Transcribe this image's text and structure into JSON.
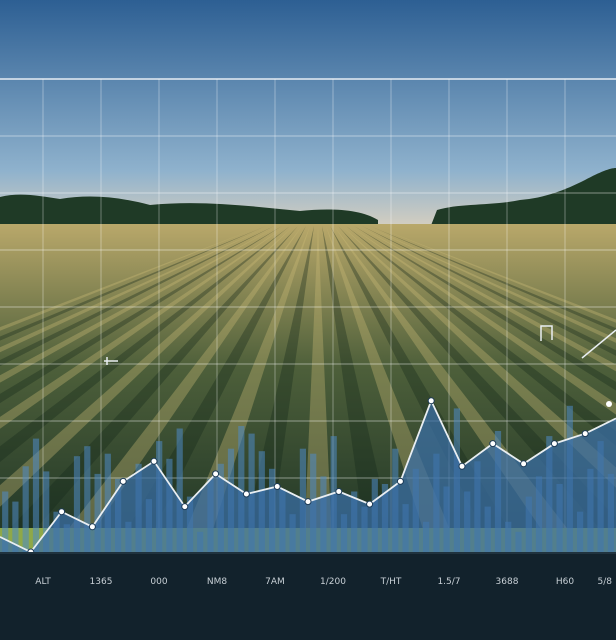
{
  "colors": {
    "sky_top": "#2d5f93",
    "sky_mid": "#8fb2cd",
    "horizon": "#d6cfc0",
    "field_light": "#b9a86a",
    "field_dark": "#1f3526",
    "area_fill": "#3a6fa8",
    "bar_fill": "#4f8bc6",
    "line": "#e9eef2",
    "ground_strip": "#8fa848",
    "axis_band": "#12222c",
    "tick_text": "#c8d0d6"
  },
  "chart_data": {
    "type": "area",
    "title": "",
    "xlabel": "",
    "ylabel": "",
    "grid": true,
    "ylim": [
      0,
      100
    ],
    "x_ticks": [
      "ALT",
      "1365",
      "000",
      "NM8",
      "7AM",
      "1/200",
      "T/HT",
      "1.5/7",
      "3688",
      "H60",
      "5/8"
    ],
    "line_series": {
      "x": [
        0,
        1,
        2,
        3,
        4,
        5,
        6,
        7,
        8,
        9,
        10,
        11,
        12,
        13,
        14,
        15,
        16,
        17,
        18,
        19,
        20
      ],
      "values": [
        6,
        0,
        16,
        10,
        28,
        36,
        18,
        31,
        23,
        26,
        20,
        24,
        19,
        28,
        60,
        34,
        43,
        35,
        43,
        47,
        53
      ]
    },
    "bars": {
      "values": [
        24,
        20,
        34,
        45,
        32,
        16,
        11,
        38,
        42,
        31,
        39,
        29,
        12,
        35,
        21,
        44,
        37,
        49,
        22,
        8,
        29,
        35,
        41,
        50,
        47,
        40,
        33,
        25,
        15,
        41,
        39,
        30,
        46,
        15,
        24,
        18,
        29,
        27,
        41,
        19,
        33,
        12,
        39,
        26,
        57,
        24,
        36,
        18,
        48,
        12,
        8,
        22,
        30,
        46,
        27,
        58,
        16,
        33,
        44,
        31
      ]
    }
  }
}
